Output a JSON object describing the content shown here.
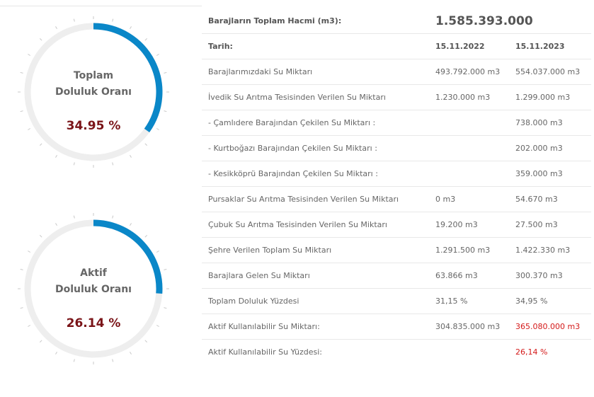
{
  "gauges": [
    {
      "title_line1": "Toplam",
      "title_line2": "Doluluk Oranı",
      "value_label": "34.95 %",
      "fill_percent": 34.95,
      "arc_color": "#0a87c8",
      "track_color": "#eeeeee"
    },
    {
      "title_line1": "Aktif",
      "title_line2": "Doluluk Oranı",
      "value_label": "26.14 %",
      "fill_percent": 26.14,
      "arc_color": "#0a87c8",
      "track_color": "#eeeeee"
    }
  ],
  "table": {
    "total_volume_label": "Barajların Toplam Hacmi (m3):",
    "total_volume_value": "1.585.393.000",
    "date_label": "Tarih:",
    "col1_date": "15.11.2022",
    "col2_date": "15.11.2023",
    "rows": [
      {
        "label": "Barajlarımızdaki Su Miktarı",
        "v2022": "493.792.000 m3",
        "v2023": "554.037.000 m3"
      },
      {
        "label": "İvedik Su Arıtma Tesisinden Verilen Su Miktarı",
        "v2022": "1.230.000 m3",
        "v2023": "1.299.000 m3"
      },
      {
        "label": "- Çamlıdere Barajından Çekilen Su Miktarı :",
        "v2022": "",
        "v2023": "738.000 m3"
      },
      {
        "label": "- Kurtboğazı Barajından Çekilen Su Miktarı :",
        "v2022": "",
        "v2023": "202.000 m3"
      },
      {
        "label": "- Kesikköprü Barajından Çekilen Su Miktarı :",
        "v2022": "",
        "v2023": "359.000 m3"
      },
      {
        "label": "Pursaklar Su Arıtma Tesisinden Verilen Su Miktarı",
        "v2022": "0 m3",
        "v2023": "54.670 m3"
      },
      {
        "label": "Çubuk Su Arıtma Tesisinden Verilen Su Miktarı",
        "v2022": "19.200 m3",
        "v2023": "27.500 m3"
      },
      {
        "label": "Şehre Verilen Toplam Su Miktarı",
        "v2022": "1.291.500 m3",
        "v2023": "1.422.330 m3"
      },
      {
        "label": "Barajlara Gelen Su Miktarı",
        "v2022": "63.866 m3",
        "v2023": "300.370 m3"
      },
      {
        "label": "Toplam Doluluk Yüzdesi",
        "v2022": "31,15 %",
        "v2023": "34,95 %"
      },
      {
        "label": "Aktif Kullanılabilir Su Miktarı:",
        "v2022": "304.835.000 m3",
        "v2023": "365.080.000 m3"
      },
      {
        "label": "Aktif Kullanılabilir Su Yüzdesi:",
        "v2022": "",
        "v2023": "26,14 %"
      }
    ]
  }
}
